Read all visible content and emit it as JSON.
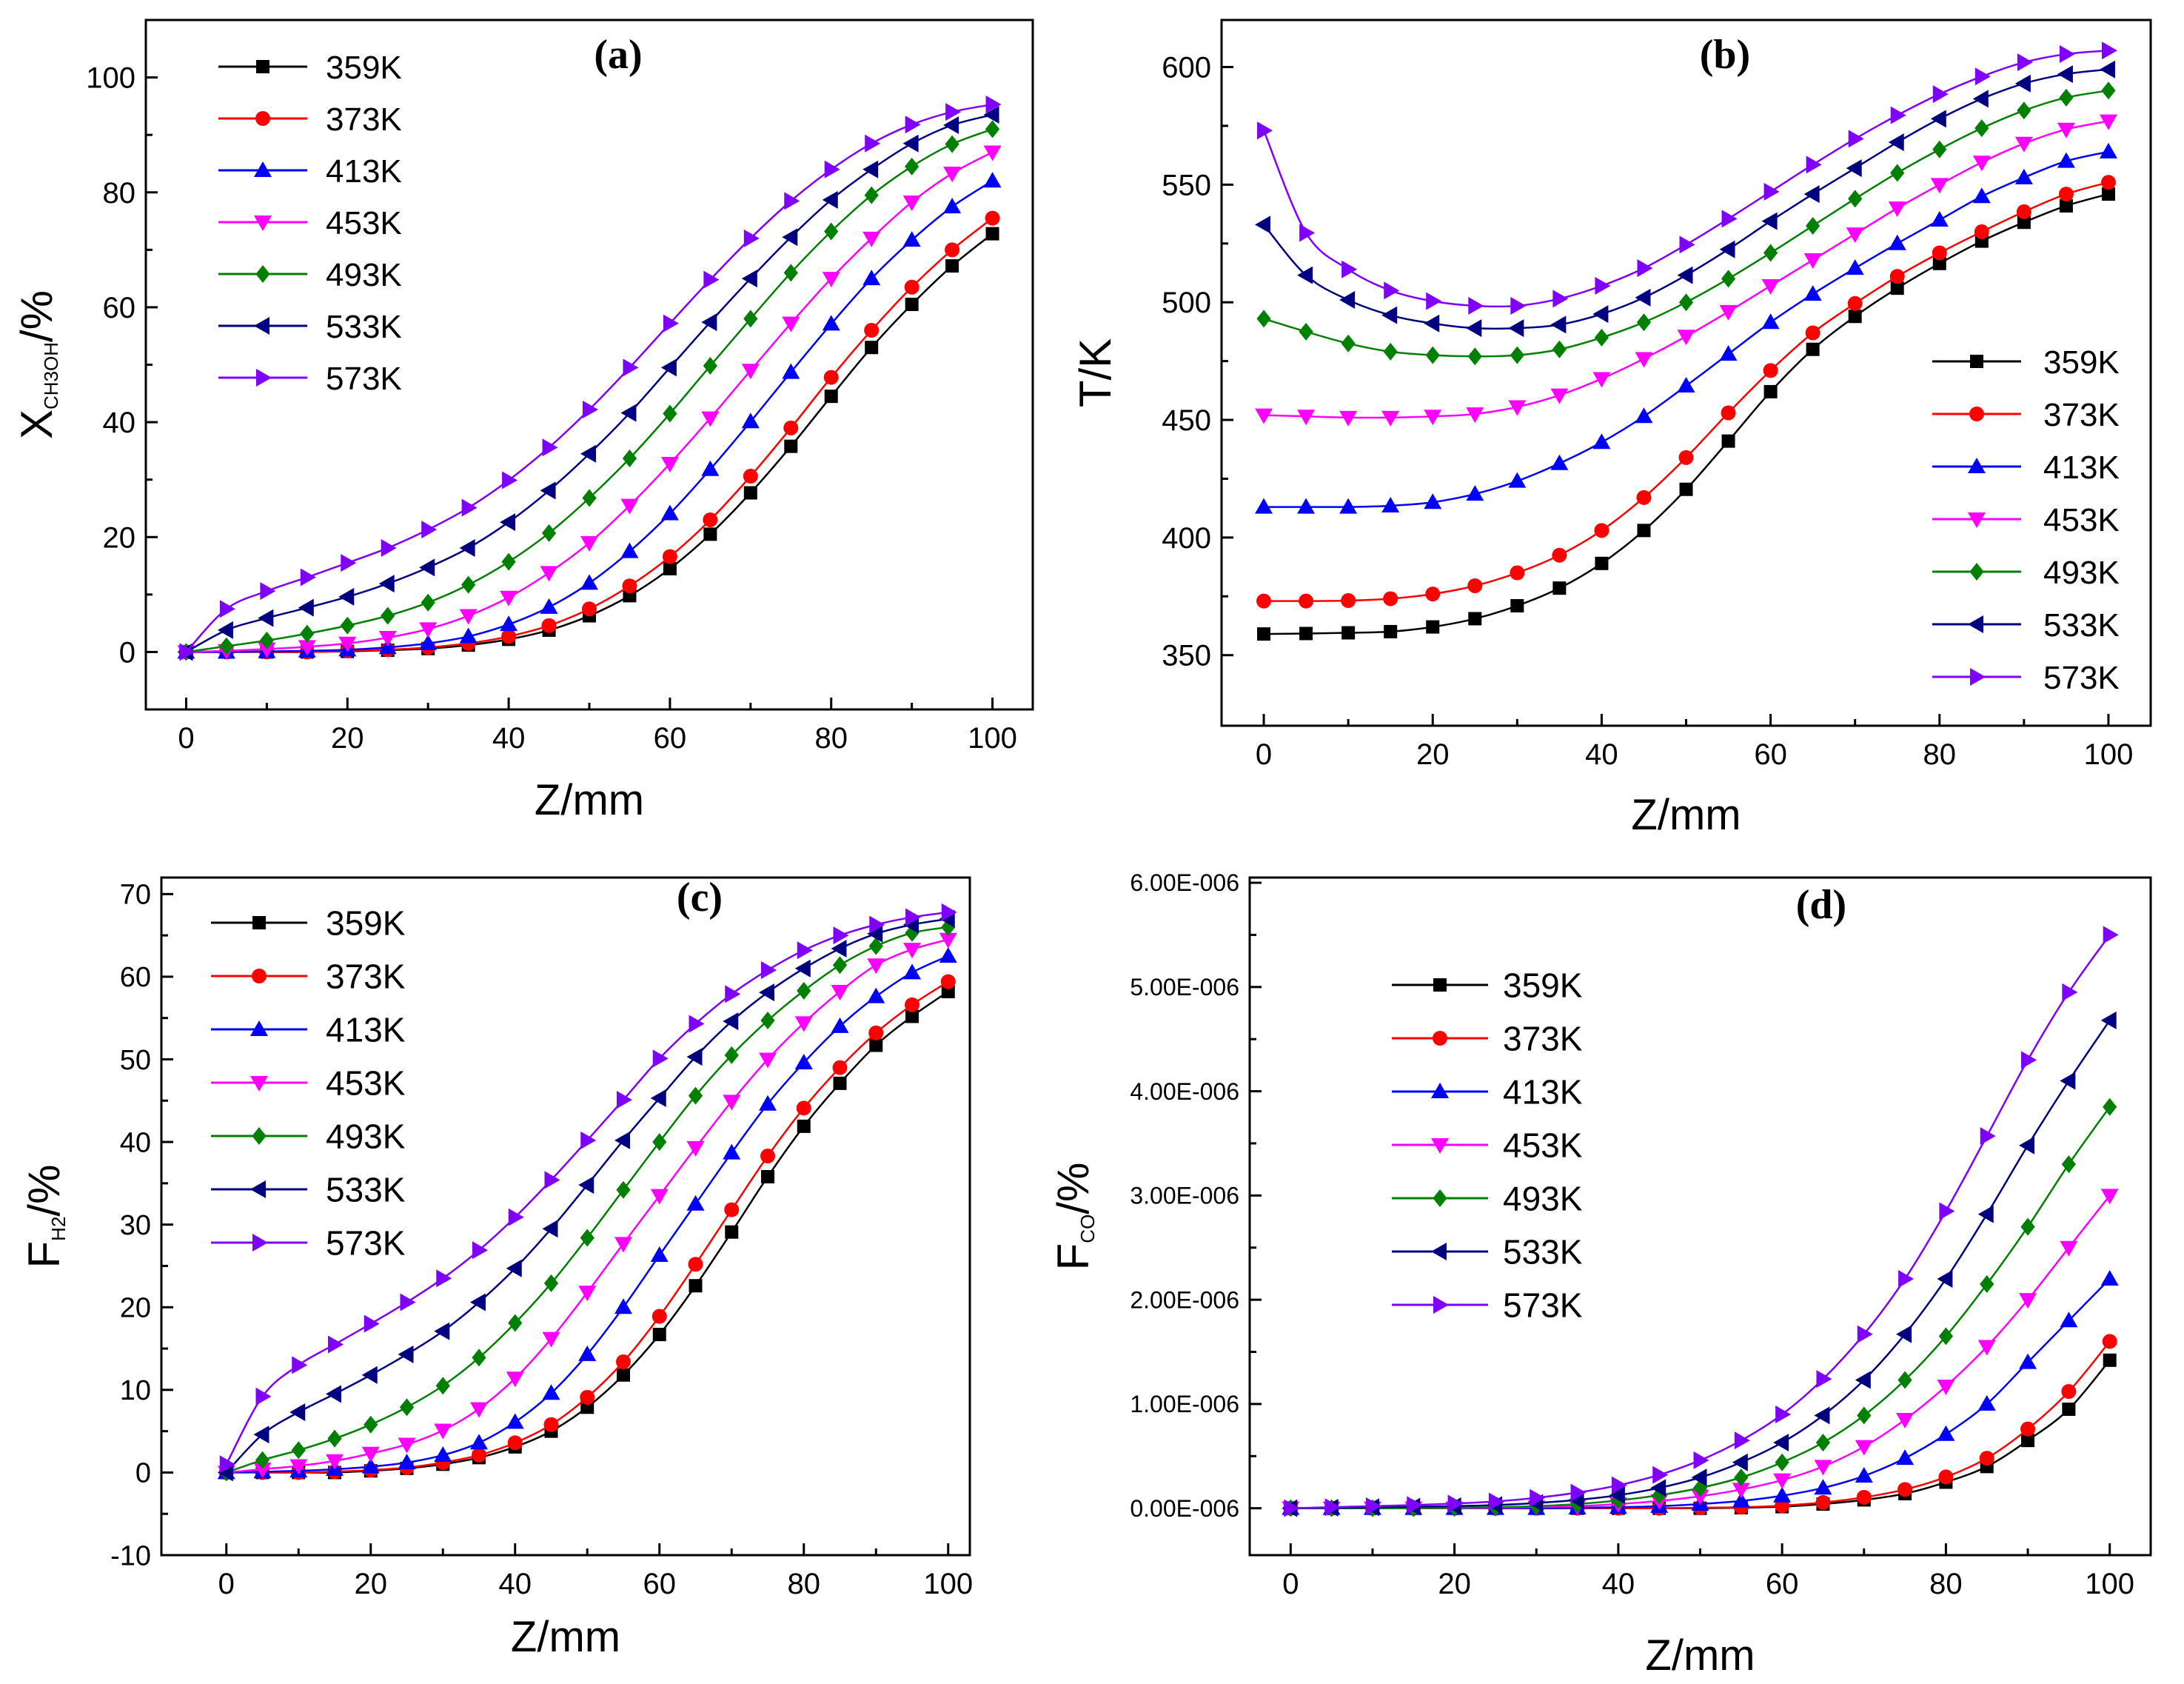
{
  "figure": {
    "series_colors": [
      "#000000",
      "#ff0000",
      "#0000ff",
      "#ff00ff",
      "#008000",
      "#000080",
      "#8000ff"
    ],
    "series_markers": [
      "square",
      "circle",
      "triangle-up",
      "triangle-down",
      "diamond",
      "triangle-left",
      "triangle-right"
    ]
  },
  "chart_data": [
    {
      "panel": "(a)",
      "type": "line",
      "xlabel": "Z/mm",
      "ylabel": {
        "main": "X",
        "sub": "CH3OH",
        "suffix": "/%"
      },
      "xlim": [
        -5,
        105
      ],
      "ylim": [
        -10,
        110
      ],
      "xticks": [
        "0",
        "20",
        "40",
        "60",
        "80",
        "100"
      ],
      "yticks": [
        "0",
        "20",
        "40",
        "60",
        "80",
        "100"
      ],
      "legend_position": "top-left",
      "x": [
        0,
        5,
        10,
        15,
        20,
        25,
        30,
        35,
        40,
        45,
        50,
        55,
        60,
        65,
        70,
        75,
        80,
        85,
        90,
        95,
        100
      ],
      "series": [
        {
          "name": "359K",
          "values": [
            0,
            0,
            0,
            0,
            0.1,
            0.3,
            0.6,
            1.2,
            2.2,
            3.8,
            6.3,
            9.8,
            14.5,
            20.5,
            27.7,
            35.8,
            44.5,
            53,
            60.5,
            67.2,
            72.8
          ]
        },
        {
          "name": "373K",
          "values": [
            0,
            0,
            0,
            0,
            0.2,
            0.4,
            0.8,
            1.5,
            2.7,
            4.6,
            7.5,
            11.5,
            16.6,
            23,
            30.6,
            39,
            47.8,
            56,
            63.5,
            70,
            75.5
          ]
        },
        {
          "name": "413K",
          "values": [
            0,
            0,
            0.1,
            0.2,
            0.4,
            0.8,
            1.5,
            2.7,
            4.8,
            7.8,
            12,
            17.5,
            24.1,
            31.8,
            40.1,
            48.7,
            57.1,
            65,
            71.7,
            77.5,
            82
          ]
        },
        {
          "name": "453K",
          "values": [
            0,
            0.2,
            0.5,
            0.9,
            1.5,
            2.5,
            4,
            6.3,
            9.5,
            13.8,
            19,
            25.5,
            32.8,
            40.7,
            49,
            57.2,
            65,
            72,
            78.3,
            83.3,
            87
          ]
        },
        {
          "name": "493K",
          "values": [
            0,
            1,
            2,
            3.2,
            4.6,
            6.3,
            8.6,
            11.7,
            15.7,
            20.7,
            26.8,
            33.7,
            41.5,
            49.8,
            58,
            66,
            73.2,
            79.5,
            84.5,
            88.4,
            91
          ]
        },
        {
          "name": "533K",
          "values": [
            0,
            3.8,
            5.9,
            7.7,
            9.6,
            11.9,
            14.7,
            18.1,
            22.6,
            28.1,
            34.5,
            41.6,
            49.5,
            57.4,
            65,
            72.2,
            78.7,
            84,
            88.5,
            91.7,
            93.5
          ]
        },
        {
          "name": "573K",
          "values": [
            0,
            7.5,
            10.6,
            13,
            15.5,
            18.1,
            21.3,
            25.1,
            29.9,
            35.6,
            42.2,
            49.5,
            57.2,
            64.8,
            72,
            78.5,
            84,
            88.5,
            91.8,
            94,
            95.3
          ]
        }
      ]
    },
    {
      "panel": "(b)",
      "type": "line",
      "xlabel": "Z/mm",
      "ylabel": {
        "main": "T/K",
        "sub": "",
        "suffix": ""
      },
      "xlim": [
        -5,
        105
      ],
      "ylim": [
        320,
        620
      ],
      "xticks": [
        "0",
        "20",
        "40",
        "60",
        "80",
        "100"
      ],
      "yticks": [
        "350",
        "400",
        "450",
        "500",
        "550",
        "600"
      ],
      "legend_position": "bottom-right",
      "x": [
        0,
        5,
        10,
        15,
        20,
        25,
        30,
        35,
        40,
        45,
        50,
        55,
        60,
        65,
        70,
        75,
        80,
        85,
        90,
        95,
        100
      ],
      "series": [
        {
          "name": "359K",
          "values": [
            359,
            359.2,
            359.5,
            360,
            362,
            365.5,
            371,
            378.5,
            389,
            403,
            420.5,
            441,
            462,
            480,
            494,
            506,
            516.5,
            526,
            534,
            541,
            546
          ]
        },
        {
          "name": "373K",
          "values": [
            373,
            373,
            373.2,
            374,
            376,
            379.5,
            385,
            392.5,
            403,
            417,
            434,
            453,
            471,
            487,
            499.5,
            511,
            521,
            530,
            538.5,
            546,
            551
          ]
        },
        {
          "name": "413K",
          "values": [
            413,
            413,
            413,
            413.5,
            415,
            418.5,
            424,
            431.5,
            440.5,
            451.5,
            464.5,
            478,
            491.5,
            503.5,
            514.5,
            525,
            535,
            545,
            553,
            560,
            564
          ]
        },
        {
          "name": "453K",
          "values": [
            452,
            451.5,
            451,
            451,
            451.5,
            452.5,
            455.5,
            460.5,
            467.5,
            476,
            485.5,
            496,
            507,
            518,
            529,
            540,
            550,
            559.5,
            567.5,
            573.5,
            577
          ]
        },
        {
          "name": "493K",
          "values": [
            493,
            487.5,
            482.5,
            479,
            477.5,
            477,
            477.5,
            480,
            485,
            491.5,
            500,
            510,
            521,
            532.5,
            544,
            555,
            565,
            574,
            581.5,
            587,
            590
          ]
        },
        {
          "name": "533K",
          "values": [
            533,
            511.5,
            501,
            494.5,
            491,
            489,
            489,
            490.5,
            495,
            502,
            511.5,
            522.5,
            534.5,
            546,
            557,
            568,
            578,
            586.5,
            593,
            597,
            599
          ]
        },
        {
          "name": "573K",
          "values": [
            573,
            529.5,
            514,
            505,
            500.5,
            498.5,
            498.5,
            501.5,
            507,
            514.5,
            524.5,
            535.5,
            547,
            558.5,
            569.5,
            579.5,
            588.5,
            596,
            602,
            605.5,
            607
          ]
        }
      ]
    },
    {
      "panel": "(c)",
      "type": "line",
      "xlabel": "Z/mm",
      "ylabel": {
        "main": "F",
        "sub": "H2",
        "suffix": "/%"
      },
      "xlim": [
        -9,
        103
      ],
      "ylim": [
        -10,
        72
      ],
      "xticks": [
        "0",
        "20",
        "40",
        "60",
        "80",
        "100"
      ],
      "yticks": [
        "-10",
        "0",
        "10",
        "20",
        "30",
        "40",
        "50",
        "60",
        "70"
      ],
      "legend_position": "top-left",
      "x": [
        0,
        5,
        10,
        15,
        20,
        25,
        30,
        35,
        40,
        45,
        50,
        55,
        60,
        65,
        70,
        75,
        80,
        85,
        90,
        95,
        100
      ],
      "series": [
        {
          "name": "359K",
          "values": [
            0,
            0,
            0,
            0,
            0.2,
            0.5,
            1,
            1.8,
            3.1,
            5,
            7.9,
            11.8,
            16.7,
            22.6,
            29.1,
            35.8,
            41.9,
            47.1,
            51.7,
            55.2,
            58.2
          ]
        },
        {
          "name": "373K",
          "values": [
            0,
            0,
            0,
            0.1,
            0.3,
            0.6,
            1.2,
            2.1,
            3.6,
            5.8,
            9.1,
            13.4,
            18.9,
            25.2,
            31.8,
            38.3,
            44.1,
            49,
            53.2,
            56.6,
            59.4
          ]
        },
        {
          "name": "413K",
          "values": [
            0,
            0.1,
            0.2,
            0.4,
            0.7,
            1.2,
            2.1,
            3.6,
            6.1,
            9.6,
            14.3,
            20,
            26.3,
            32.5,
            38.7,
            44.6,
            49.6,
            54,
            57.6,
            60.5,
            62.5
          ]
        },
        {
          "name": "453K",
          "values": [
            0,
            0.4,
            0.8,
            1.4,
            2.3,
            3.4,
            5.1,
            7.7,
            11.4,
            16.2,
            21.8,
            27.7,
            33.5,
            39.3,
            44.9,
            50,
            54.4,
            58.2,
            61.4,
            63.3,
            64.5
          ]
        },
        {
          "name": "493K",
          "values": [
            0,
            1.5,
            2.7,
            4.1,
            5.8,
            7.9,
            10.5,
            13.9,
            18.1,
            22.9,
            28.4,
            34.2,
            40,
            45.6,
            50.5,
            54.7,
            58.3,
            61.4,
            63.7,
            65.3,
            66
          ]
        },
        {
          "name": "533K",
          "values": [
            0,
            4.6,
            7.3,
            9.5,
            11.8,
            14.3,
            17.1,
            20.6,
            24.7,
            29.5,
            34.8,
            40.2,
            45.3,
            50.3,
            54.6,
            58.1,
            61,
            63.4,
            65.2,
            66.3,
            67
          ]
        },
        {
          "name": "573K",
          "values": [
            1,
            9.2,
            13,
            15.5,
            18,
            20.6,
            23.5,
            26.9,
            30.9,
            35.4,
            40.2,
            45.1,
            50.1,
            54.3,
            57.9,
            60.8,
            63.2,
            65,
            66.3,
            67.2,
            67.8
          ]
        }
      ]
    },
    {
      "panel": "(d)",
      "type": "line",
      "xlabel": "Z/mm",
      "ylabel": {
        "main": "F",
        "sub": "CO",
        "suffix": "/%"
      },
      "xlim": [
        -5,
        105
      ],
      "ylim": [
        -4.5e-07,
        6.05e-06
      ],
      "xticks": [
        "0",
        "20",
        "40",
        "60",
        "80",
        "100"
      ],
      "yticks": [
        "0.00E-006",
        "1.00E-006",
        "2.00E-006",
        "3.00E-006",
        "4.00E-006",
        "5.00E-006",
        "6.00E-006"
      ],
      "legend_position": "top-left",
      "x": [
        0,
        5,
        10,
        15,
        20,
        25,
        30,
        35,
        40,
        45,
        50,
        55,
        60,
        65,
        70,
        75,
        80,
        85,
        90,
        95,
        100
      ],
      "series": [
        {
          "name": "359K",
          "values": [
            0,
            0,
            0,
            0,
            0,
            0,
            0,
            0,
            0,
            0,
            0,
            5e-09,
            1.5e-08,
            4e-08,
            8e-08,
            1.4e-07,
            2.5e-07,
            4e-07,
            6.5e-07,
            9.5e-07,
            1.42e-06
          ]
        },
        {
          "name": "373K",
          "values": [
            0,
            0,
            0,
            0,
            0,
            0,
            0,
            0,
            0,
            0,
            5e-09,
            1e-08,
            2.5e-08,
            5.5e-08,
            1.05e-07,
            1.8e-07,
            3e-07,
            4.8e-07,
            7.6e-07,
            1.12e-06,
            1.6e-06
          ]
        },
        {
          "name": "413K",
          "values": [
            0,
            0,
            0,
            0,
            0,
            0,
            0,
            5e-09,
            1e-08,
            2e-08,
            4e-08,
            7e-08,
            1.2e-07,
            1.95e-07,
            3.1e-07,
            4.8e-07,
            7.1e-07,
            1e-06,
            1.4e-06,
            1.8e-06,
            2.2e-06
          ]
        },
        {
          "name": "453K",
          "values": [
            0,
            0,
            0,
            0,
            0,
            5e-09,
            1e-08,
            2e-08,
            4e-08,
            7e-08,
            1.15e-07,
            1.8e-07,
            2.7e-07,
            4e-07,
            5.9e-07,
            8.5e-07,
            1.17e-06,
            1.55e-06,
            2e-06,
            2.5e-06,
            3e-06
          ]
        },
        {
          "name": "493K",
          "values": [
            0,
            0,
            0,
            0,
            5e-09,
            1e-08,
            2e-08,
            4e-08,
            7.5e-08,
            1.25e-07,
            1.95e-07,
            2.95e-07,
            4.4e-07,
            6.3e-07,
            8.9e-07,
            1.23e-06,
            1.65e-06,
            2.15e-06,
            2.7e-06,
            3.3e-06,
            3.85e-06
          ]
        },
        {
          "name": "533K",
          "values": [
            0,
            5e-09,
            1e-08,
            1.5e-08,
            2e-08,
            3e-08,
            5e-08,
            8e-08,
            1.25e-07,
            1.95e-07,
            2.95e-07,
            4.4e-07,
            6.3e-07,
            8.9e-07,
            1.23e-06,
            1.67e-06,
            2.2e-06,
            2.82e-06,
            3.48e-06,
            4.1e-06,
            4.68e-06
          ]
        },
        {
          "name": "573K",
          "values": [
            0,
            1e-08,
            2e-08,
            3e-08,
            4.5e-08,
            6.5e-08,
            1e-07,
            1.5e-07,
            2.2e-07,
            3.2e-07,
            4.6e-07,
            6.5e-07,
            9e-07,
            1.24e-06,
            1.67e-06,
            2.2e-06,
            2.85e-06,
            3.57e-06,
            4.3e-06,
            4.95e-06,
            5.5e-06
          ]
        }
      ]
    }
  ]
}
